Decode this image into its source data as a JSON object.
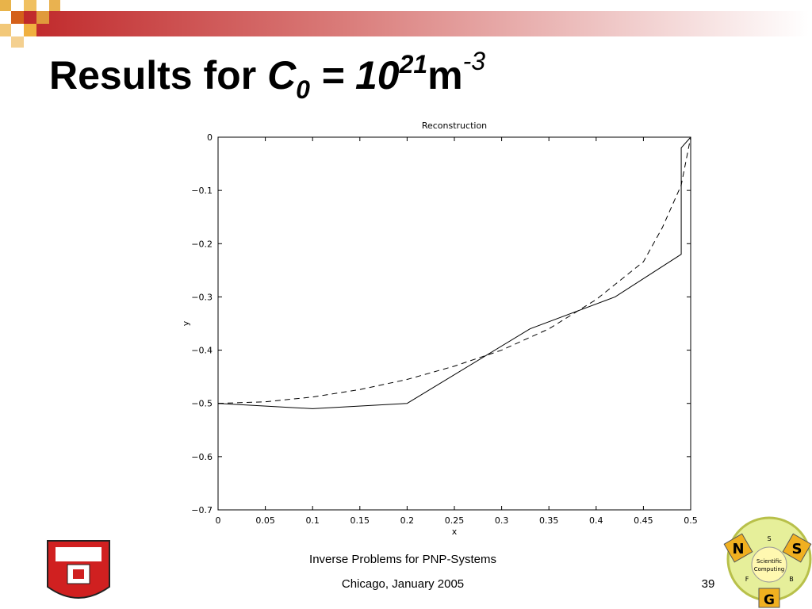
{
  "title": {
    "text": "Results for ",
    "var": "C",
    "sub": "0",
    "eq": " = 10",
    "exp": "21",
    "unit": "m",
    "unitexp": "-3"
  },
  "chart_data": {
    "type": "line",
    "title": "Reconstruction",
    "xlabel": "x",
    "ylabel": "y",
    "xlim": [
      0,
      0.5
    ],
    "ylim": [
      -0.7,
      0
    ],
    "xticks": [
      0,
      0.05,
      0.1,
      0.15,
      0.2,
      0.25,
      0.3,
      0.35,
      0.4,
      0.45,
      0.5
    ],
    "yticks": [
      0,
      {
        "value": -0.1,
        "label": "−0.1"
      },
      {
        "value": -0.2,
        "label": "−0.2"
      },
      {
        "value": -0.3,
        "label": "−0.3"
      },
      {
        "value": -0.4,
        "label": "−0.4"
      },
      {
        "value": -0.5,
        "label": "−0.5"
      },
      {
        "value": -0.6,
        "label": "−0.6"
      },
      {
        "value": -0.7,
        "label": "−0.7"
      }
    ],
    "series": [
      {
        "color": "#000000",
        "dashed": false,
        "x": [
          0,
          0.1,
          0.2,
          0.33,
          0.42,
          0.49,
          0.49,
          0.5
        ],
        "values": [
          -0.5,
          -0.51,
          -0.5,
          -0.36,
          -0.3,
          -0.22,
          -0.02,
          0
        ]
      },
      {
        "color": "#000000",
        "dashed": true,
        "x": [
          0,
          0.05,
          0.1,
          0.15,
          0.2,
          0.25,
          0.3,
          0.35,
          0.4,
          0.45,
          0.47,
          0.49,
          0.5
        ],
        "values": [
          -0.5,
          -0.497,
          -0.488,
          -0.474,
          -0.455,
          -0.43,
          -0.4,
          -0.36,
          -0.305,
          -0.234,
          -0.17,
          -0.09,
          0
        ]
      }
    ]
  },
  "footer": {
    "line1": "Inverse Problems for PNP-Systems",
    "line2": "Chicago, January 2005",
    "page": "39"
  },
  "logo": {
    "n": "N",
    "s1": "S",
    "s2": "S",
    "sci": "Scientific",
    "comp": "Computing",
    "f": "F",
    "b": "B",
    "g": "G"
  }
}
